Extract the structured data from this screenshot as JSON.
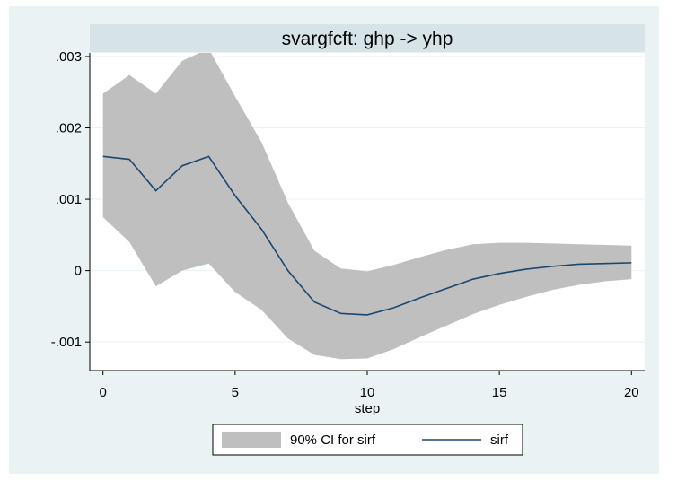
{
  "chart_data": {
    "type": "line",
    "title": "svargfcft: ghp -> yhp",
    "xlabel": "step",
    "ylabel": "",
    "xlim": [
      -0.5,
      20.5
    ],
    "ylim": [
      -0.0014,
      0.00305
    ],
    "x_ticks": [
      0,
      5,
      10,
      15,
      20
    ],
    "y_ticks": [
      -0.001,
      0,
      0.001,
      0.002,
      0.003
    ],
    "y_tick_labels": [
      "-.001",
      "0",
      ".001",
      ".002",
      ".003"
    ],
    "grid": true,
    "legend_position": "bottom",
    "x": [
      0,
      1,
      2,
      3,
      4,
      5,
      6,
      7,
      8,
      9,
      10,
      11,
      12,
      13,
      14,
      15,
      16,
      17,
      18,
      19,
      20
    ],
    "series": [
      {
        "name": "90% CI for sirf",
        "kind": "band",
        "color": "#bfbfbf",
        "lower": [
          0.00075,
          0.0004,
          -0.00022,
          0.0,
          0.0001,
          -0.0003,
          -0.00055,
          -0.00095,
          -0.00118,
          -0.00124,
          -0.00123,
          -0.0011,
          -0.00093,
          -0.00077,
          -0.00061,
          -0.00048,
          -0.00037,
          -0.00027,
          -0.0002,
          -0.00015,
          -0.00012
        ],
        "upper": [
          0.00248,
          0.00274,
          0.00248,
          0.00294,
          0.00311,
          0.00244,
          0.0018,
          0.00095,
          0.00028,
          3e-05,
          -1e-05,
          8e-05,
          0.00019,
          0.00029,
          0.00037,
          0.00039,
          0.00039,
          0.00038,
          0.00037,
          0.00036,
          0.00035
        ]
      },
      {
        "name": "sirf",
        "kind": "line",
        "color": "#1a476f",
        "values": [
          0.0016,
          0.00156,
          0.00112,
          0.00147,
          0.0016,
          0.00105,
          0.00058,
          0.0,
          -0.00044,
          -0.0006,
          -0.00062,
          -0.00052,
          -0.00038,
          -0.00025,
          -0.00012,
          -4e-05,
          2e-05,
          6e-05,
          9e-05,
          0.0001,
          0.00011
        ]
      }
    ]
  }
}
